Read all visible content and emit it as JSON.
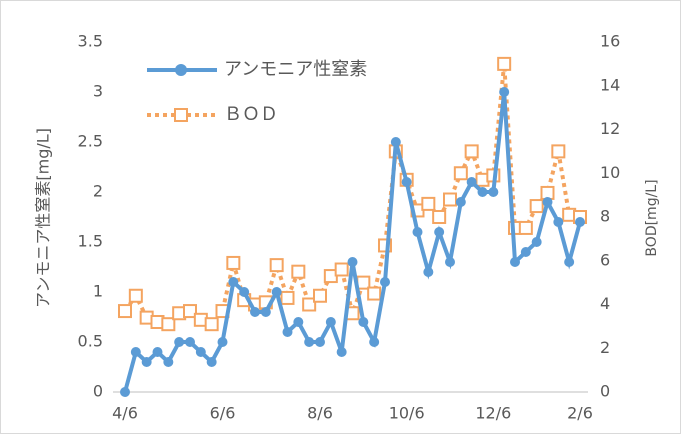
{
  "chart_data": {
    "type": "line",
    "categories": [
      "4/6",
      null,
      null,
      null,
      null,
      null,
      null,
      null,
      null,
      "6/6",
      null,
      null,
      null,
      null,
      null,
      null,
      null,
      null,
      "8/6",
      null,
      null,
      null,
      null,
      null,
      null,
      null,
      "10/6",
      null,
      null,
      null,
      null,
      null,
      null,
      null,
      "12/6",
      null,
      null,
      null,
      null,
      null,
      null,
      null,
      "2/6"
    ],
    "series": [
      {
        "name": "アンモニア性窒素",
        "color": "#5b9bd5",
        "marker": "circle",
        "values": [
          0,
          0.4,
          0.3,
          0.4,
          0.3,
          0.5,
          0.5,
          0.4,
          0.3,
          0.5,
          1.1,
          1.0,
          0.8,
          0.8,
          1.0,
          0.6,
          0.7,
          0.5,
          0.5,
          0.7,
          0.4,
          1.3,
          0.7,
          0.5,
          1.1,
          2.5,
          2.1,
          1.6,
          1.2,
          1.6,
          1.3,
          1.9,
          2.1,
          2.0,
          2.0,
          3.0,
          1.3,
          1.4,
          1.5,
          1.9,
          1.7,
          1.3,
          1.7
        ]
      },
      {
        "name": "ＢＯＤ",
        "color": "#f4a460",
        "marker": "square",
        "axis": "y2",
        "values": [
          3.7,
          4.4,
          3.4,
          3.2,
          3.1,
          3.6,
          3.7,
          3.3,
          3.1,
          3.7,
          5.9,
          4.2,
          4.0,
          4.1,
          5.8,
          4.3,
          5.5,
          4.0,
          4.4,
          5.3,
          5.6,
          3.6,
          5.0,
          4.5,
          6.7,
          11.0,
          9.7,
          8.3,
          8.6,
          8.0,
          8.8,
          10.0,
          11.0,
          9.7,
          9.9,
          15.0,
          7.5,
          7.5,
          8.5,
          9.1,
          11.0,
          8.1,
          8.0
        ]
      }
    ],
    "ylabel": "アンモニア性窒素[mg/L]",
    "y2label": "BOD[mg/L]",
    "ylim": [
      0,
      3.5
    ],
    "yticks": [
      0,
      0.5,
      1,
      1.5,
      2,
      2.5,
      3,
      3.5
    ],
    "y2lim": [
      0,
      16
    ],
    "y2ticks": [
      0,
      2,
      4,
      6,
      8,
      10,
      12,
      14,
      16
    ],
    "legend": "upper-left",
    "grid": false
  }
}
